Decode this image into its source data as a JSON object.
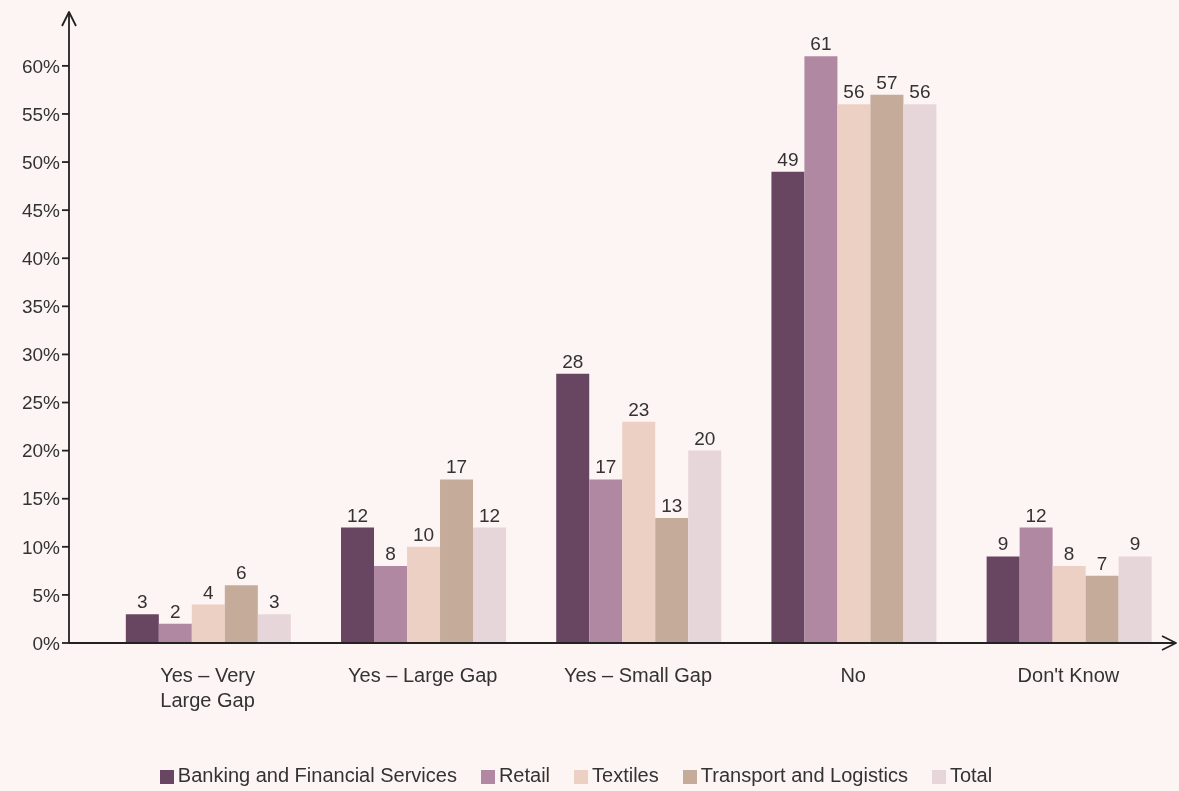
{
  "chart_data": {
    "type": "bar",
    "categories": [
      "Yes – Very Large Gap",
      "Yes – Large Gap",
      "Yes – Small Gap",
      "No",
      "Don't Know"
    ],
    "series": [
      {
        "name": "Banking and Financial Services",
        "color": "#684560",
        "values": [
          3,
          12,
          28,
          49,
          9
        ]
      },
      {
        "name": "Retail",
        "color": "#b088a2",
        "values": [
          2,
          8,
          17,
          61,
          12
        ]
      },
      {
        "name": "Textiles",
        "color": "#ecd0c4",
        "values": [
          4,
          10,
          23,
          56,
          8
        ]
      },
      {
        "name": "Transport and Logistics",
        "color": "#c5ab9a",
        "values": [
          6,
          17,
          13,
          57,
          7
        ]
      },
      {
        "name": "Total",
        "color": "#e7d6d9",
        "values": [
          3,
          12,
          20,
          56,
          9
        ]
      }
    ],
    "ylim": [
      0,
      65.6
    ],
    "yticks": [
      {
        "value": 0,
        "label": "0%"
      },
      {
        "value": 5,
        "label": "5%"
      },
      {
        "value": 10,
        "label": "10%"
      },
      {
        "value": 15,
        "label": "15%"
      },
      {
        "value": 20,
        "label": "20%"
      },
      {
        "value": 25,
        "label": "25%"
      },
      {
        "value": 30,
        "label": "30%"
      },
      {
        "value": 35,
        "label": "35%"
      },
      {
        "value": 40,
        "label": "40%"
      },
      {
        "value": 45,
        "label": "45%"
      },
      {
        "value": 50,
        "label": "50%"
      },
      {
        "value": 55,
        "label": "55%"
      },
      {
        "value": 60,
        "label": "60%"
      }
    ],
    "grid": false,
    "legend": "bottom",
    "data_labels": true
  }
}
